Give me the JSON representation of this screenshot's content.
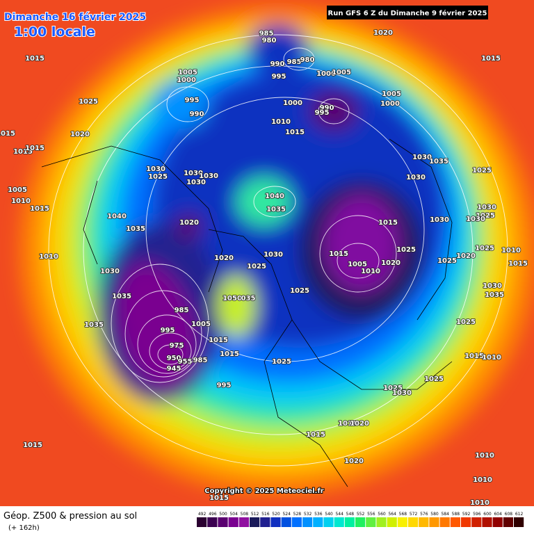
{
  "header": {
    "date": "Dimanche 16 février 2025",
    "time": "1:00 locale",
    "run": "Run GFS 6 Z du Dimanche 9 février 2025"
  },
  "footer": {
    "title": "Géop. Z500 & pression au sol",
    "lead": "(+ 162h)",
    "copyright": "Copyright © 2025 Meteociel.fr"
  },
  "legend": {
    "levels": [
      492,
      496,
      500,
      504,
      508,
      512,
      516,
      520,
      524,
      528,
      532,
      536,
      540,
      544,
      548,
      552,
      556,
      560,
      564,
      568,
      572,
      576,
      580,
      584,
      588,
      592,
      596,
      600,
      604,
      608,
      612
    ],
    "colors": [
      "#2a0030",
      "#3b0050",
      "#5a0070",
      "#7a0090",
      "#9010a0",
      "#1a1a5a",
      "#202090",
      "#1030c0",
      "#0050e0",
      "#0070ff",
      "#0090ff",
      "#00b0ff",
      "#00d0f0",
      "#00e8d0",
      "#00f0a0",
      "#20f060",
      "#60f040",
      "#a0f020",
      "#d0f000",
      "#f8f000",
      "#ffd800",
      "#ffb800",
      "#ff9800",
      "#ff7800",
      "#ff5800",
      "#f03800",
      "#d02000",
      "#b01000",
      "#900000",
      "#600000",
      "#300000"
    ]
  },
  "isobar_labels": [
    "1015",
    "1025",
    "1015",
    "1020",
    "1015",
    "1015",
    "1005",
    "1010",
    "1015",
    "1040",
    "1035",
    "1010",
    "1030",
    "1035",
    "1035",
    "1030",
    "1025",
    "1030",
    "1030",
    "1030",
    "1020",
    "1020",
    "1025",
    "1030",
    "1040",
    "1035",
    "985",
    "980",
    "990",
    "985",
    "980",
    "995",
    "1000",
    "1005",
    "1005",
    "1000",
    "995",
    "990",
    "1000",
    "990",
    "995",
    "1005",
    "1000",
    "1010",
    "1015",
    "1020",
    "1015",
    "1030",
    "1035",
    "1025",
    "1030",
    "1030",
    "1025",
    "1030",
    "1015",
    "1030",
    "1025",
    "1020",
    "1005",
    "1010",
    "1015",
    "1025",
    "1020",
    "1025",
    "1010",
    "1015",
    "1025",
    "1030",
    "1035",
    "1025",
    "1015",
    "1010",
    "1050",
    "035",
    "985",
    "995",
    "1005",
    "1015",
    "975",
    "950",
    "945",
    "955",
    "985",
    "1015",
    "1025",
    "995",
    "1025",
    "1025",
    "1030",
    "1010",
    "1020",
    "1015",
    "1020",
    "1015",
    "1010",
    "1010",
    "1010",
    "1015"
  ]
}
